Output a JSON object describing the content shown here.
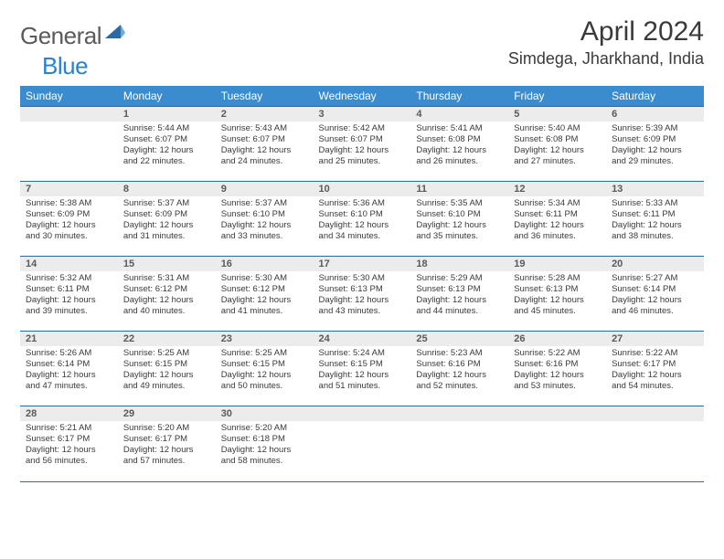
{
  "brand": {
    "word1": "General",
    "word2": "Blue"
  },
  "title": "April 2024",
  "location": "Simdega, Jharkhand, India",
  "colors": {
    "header_bg": "#3a8ccf",
    "header_fg": "#ffffff",
    "rule": "#2b6aa3",
    "daynum_bg": "#ececec",
    "logo_gray": "#5a5a5a",
    "logo_blue": "#2980d6"
  },
  "day_labels": [
    "Sunday",
    "Monday",
    "Tuesday",
    "Wednesday",
    "Thursday",
    "Friday",
    "Saturday"
  ],
  "weeks": [
    [
      null,
      {
        "n": "1",
        "sr": "5:44 AM",
        "ss": "6:07 PM",
        "dl": "12 hours and 22 minutes."
      },
      {
        "n": "2",
        "sr": "5:43 AM",
        "ss": "6:07 PM",
        "dl": "12 hours and 24 minutes."
      },
      {
        "n": "3",
        "sr": "5:42 AM",
        "ss": "6:07 PM",
        "dl": "12 hours and 25 minutes."
      },
      {
        "n": "4",
        "sr": "5:41 AM",
        "ss": "6:08 PM",
        "dl": "12 hours and 26 minutes."
      },
      {
        "n": "5",
        "sr": "5:40 AM",
        "ss": "6:08 PM",
        "dl": "12 hours and 27 minutes."
      },
      {
        "n": "6",
        "sr": "5:39 AM",
        "ss": "6:09 PM",
        "dl": "12 hours and 29 minutes."
      }
    ],
    [
      {
        "n": "7",
        "sr": "5:38 AM",
        "ss": "6:09 PM",
        "dl": "12 hours and 30 minutes."
      },
      {
        "n": "8",
        "sr": "5:37 AM",
        "ss": "6:09 PM",
        "dl": "12 hours and 31 minutes."
      },
      {
        "n": "9",
        "sr": "5:37 AM",
        "ss": "6:10 PM",
        "dl": "12 hours and 33 minutes."
      },
      {
        "n": "10",
        "sr": "5:36 AM",
        "ss": "6:10 PM",
        "dl": "12 hours and 34 minutes."
      },
      {
        "n": "11",
        "sr": "5:35 AM",
        "ss": "6:10 PM",
        "dl": "12 hours and 35 minutes."
      },
      {
        "n": "12",
        "sr": "5:34 AM",
        "ss": "6:11 PM",
        "dl": "12 hours and 36 minutes."
      },
      {
        "n": "13",
        "sr": "5:33 AM",
        "ss": "6:11 PM",
        "dl": "12 hours and 38 minutes."
      }
    ],
    [
      {
        "n": "14",
        "sr": "5:32 AM",
        "ss": "6:11 PM",
        "dl": "12 hours and 39 minutes."
      },
      {
        "n": "15",
        "sr": "5:31 AM",
        "ss": "6:12 PM",
        "dl": "12 hours and 40 minutes."
      },
      {
        "n": "16",
        "sr": "5:30 AM",
        "ss": "6:12 PM",
        "dl": "12 hours and 41 minutes."
      },
      {
        "n": "17",
        "sr": "5:30 AM",
        "ss": "6:13 PM",
        "dl": "12 hours and 43 minutes."
      },
      {
        "n": "18",
        "sr": "5:29 AM",
        "ss": "6:13 PM",
        "dl": "12 hours and 44 minutes."
      },
      {
        "n": "19",
        "sr": "5:28 AM",
        "ss": "6:13 PM",
        "dl": "12 hours and 45 minutes."
      },
      {
        "n": "20",
        "sr": "5:27 AM",
        "ss": "6:14 PM",
        "dl": "12 hours and 46 minutes."
      }
    ],
    [
      {
        "n": "21",
        "sr": "5:26 AM",
        "ss": "6:14 PM",
        "dl": "12 hours and 47 minutes."
      },
      {
        "n": "22",
        "sr": "5:25 AM",
        "ss": "6:15 PM",
        "dl": "12 hours and 49 minutes."
      },
      {
        "n": "23",
        "sr": "5:25 AM",
        "ss": "6:15 PM",
        "dl": "12 hours and 50 minutes."
      },
      {
        "n": "24",
        "sr": "5:24 AM",
        "ss": "6:15 PM",
        "dl": "12 hours and 51 minutes."
      },
      {
        "n": "25",
        "sr": "5:23 AM",
        "ss": "6:16 PM",
        "dl": "12 hours and 52 minutes."
      },
      {
        "n": "26",
        "sr": "5:22 AM",
        "ss": "6:16 PM",
        "dl": "12 hours and 53 minutes."
      },
      {
        "n": "27",
        "sr": "5:22 AM",
        "ss": "6:17 PM",
        "dl": "12 hours and 54 minutes."
      }
    ],
    [
      {
        "n": "28",
        "sr": "5:21 AM",
        "ss": "6:17 PM",
        "dl": "12 hours and 56 minutes."
      },
      {
        "n": "29",
        "sr": "5:20 AM",
        "ss": "6:17 PM",
        "dl": "12 hours and 57 minutes."
      },
      {
        "n": "30",
        "sr": "5:20 AM",
        "ss": "6:18 PM",
        "dl": "12 hours and 58 minutes."
      },
      null,
      null,
      null,
      null
    ]
  ],
  "labels": {
    "sunrise": "Sunrise:",
    "sunset": "Sunset:",
    "daylight": "Daylight:"
  }
}
